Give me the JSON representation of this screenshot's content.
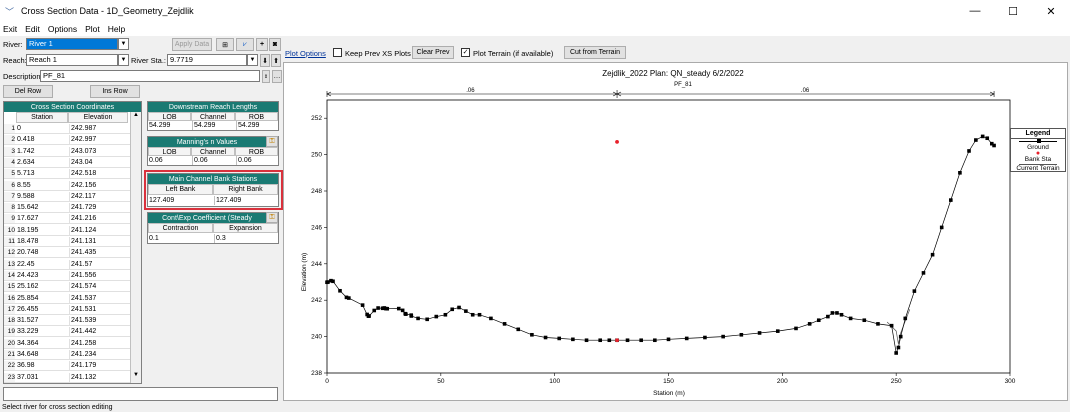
{
  "window": {
    "title": "Cross Section Data - 1D_Geometry_Zejdlik",
    "minimize": "—",
    "maximize": "☐",
    "close": "✕"
  },
  "menu": [
    "Exit",
    "Edit",
    "Options",
    "Plot",
    "Help"
  ],
  "river": {
    "label": "River:",
    "value": "River 1"
  },
  "reach": {
    "label": "Reach:",
    "value": "Reach 1"
  },
  "river_sta": {
    "label": "River Sta.:",
    "value": "9.7719"
  },
  "description": {
    "label": "Description",
    "value": "PF_81"
  },
  "apply_data": "Apply Data",
  "del_row": "Del Row",
  "ins_row": "Ins Row",
  "coords": {
    "title": "Cross Section Coordinates",
    "headers": [
      "Station",
      "Elevation"
    ],
    "rows": [
      [
        "1",
        "0",
        "242.987"
      ],
      [
        "2",
        "0.418",
        "242.997"
      ],
      [
        "3",
        "1.742",
        "243.073"
      ],
      [
        "4",
        "2.634",
        "243.04"
      ],
      [
        "5",
        "5.713",
        "242.518"
      ],
      [
        "6",
        "8.55",
        "242.156"
      ],
      [
        "7",
        "9.588",
        "242.117"
      ],
      [
        "8",
        "15.642",
        "241.729"
      ],
      [
        "9",
        "17.627",
        "241.216"
      ],
      [
        "10",
        "18.195",
        "241.124"
      ],
      [
        "11",
        "18.478",
        "241.131"
      ],
      [
        "12",
        "20.748",
        "241.435"
      ],
      [
        "13",
        "22.45",
        "241.57"
      ],
      [
        "14",
        "24.423",
        "241.556"
      ],
      [
        "15",
        "25.162",
        "241.574"
      ],
      [
        "16",
        "25.854",
        "241.537"
      ],
      [
        "17",
        "26.455",
        "241.531"
      ],
      [
        "18",
        "31.527",
        "241.539"
      ],
      [
        "19",
        "33.229",
        "241.442"
      ],
      [
        "20",
        "34.364",
        "241.258"
      ],
      [
        "21",
        "34.648",
        "241.234"
      ],
      [
        "22",
        "36.98",
        "241.179"
      ],
      [
        "23",
        "37.031",
        "241.132"
      ]
    ]
  },
  "reach_lengths": {
    "title": "Downstream Reach Lengths",
    "headers": [
      "LOB",
      "Channel",
      "ROB"
    ],
    "values": [
      "54.299",
      "54.299",
      "54.299"
    ]
  },
  "mannings": {
    "title": "Manning's n Values",
    "headers": [
      "LOB",
      "Channel",
      "ROB"
    ],
    "values": [
      "0.06",
      "0.06",
      "0.06"
    ]
  },
  "bank_stations": {
    "title": "Main Channel Bank Stations",
    "headers": [
      "Left Bank",
      "Right Bank"
    ],
    "values": [
      "127.409",
      "127.409"
    ]
  },
  "cont_exp": {
    "title": "Cont\\Exp Coefficient (Steady",
    "headers": [
      "Contraction",
      "Expansion"
    ],
    "values": [
      "0.1",
      "0.3"
    ]
  },
  "plot_toolbar": {
    "plot_options": "Plot Options",
    "keep_prev": "Keep Prev XS Plots",
    "clear_prev": "Clear Prev",
    "plot_terrain": "Plot Terrain (if available)",
    "cut_terrain": "Cut from Terrain"
  },
  "status": "Select river for cross section editing",
  "colors": {
    "teal": "#1a7a73",
    "highlight_red": "#d9313c",
    "bank_red": "#e8212b"
  },
  "chart_data": {
    "type": "line",
    "title": "Zejdlik_2022      Plan: QN_steady     6/2/2022",
    "subtitle": "PF_81",
    "xlabel": "Station (m)",
    "ylabel": "Elevation (m)",
    "xlim": [
      0,
      300
    ],
    "ylim": [
      238,
      253
    ],
    "xticks": [
      0,
      50,
      100,
      150,
      200,
      250,
      300
    ],
    "yticks": [
      238,
      240,
      242,
      244,
      246,
      248,
      250,
      252
    ],
    "n_labels": [
      {
        "x": 63,
        "label": ".06"
      },
      {
        "x": 210,
        "label": ".06"
      }
    ],
    "bank_station_x": 127.4,
    "bank_markers": [
      {
        "x": 127.4,
        "y": 250.7
      },
      {
        "x": 127.4,
        "y": 239.8
      }
    ],
    "series": [
      {
        "name": "Ground",
        "x": [
          0,
          0.418,
          1.742,
          2.634,
          5.713,
          8.55,
          9.588,
          15.642,
          17.627,
          18.195,
          18.478,
          20.748,
          22.45,
          24.423,
          25.162,
          25.854,
          26.455,
          31.527,
          33.229,
          34.364,
          34.648,
          36.98,
          37.031,
          40,
          44,
          48,
          52,
          55,
          58,
          61,
          64,
          67,
          72,
          78,
          84,
          90,
          96,
          102,
          108,
          114,
          120,
          124,
          127.4,
          132,
          138,
          144,
          150,
          158,
          166,
          174,
          182,
          190,
          198,
          206,
          212,
          216,
          220,
          222,
          224,
          226,
          230,
          236,
          242,
          248,
          250,
          251,
          252,
          254,
          258,
          262,
          266,
          270,
          274,
          278,
          282,
          285,
          288,
          290,
          292,
          293
        ],
        "y": [
          242.987,
          242.997,
          243.073,
          243.04,
          242.518,
          242.156,
          242.117,
          241.729,
          241.216,
          241.124,
          241.131,
          241.435,
          241.57,
          241.556,
          241.574,
          241.537,
          241.531,
          241.539,
          241.442,
          241.258,
          241.234,
          241.179,
          241.132,
          241.0,
          240.95,
          241.1,
          241.2,
          241.5,
          241.6,
          241.4,
          241.2,
          241.2,
          241.0,
          240.7,
          240.4,
          240.1,
          239.95,
          239.9,
          239.85,
          239.8,
          239.8,
          239.8,
          239.8,
          239.8,
          239.8,
          239.8,
          239.85,
          239.9,
          239.95,
          240.0,
          240.1,
          240.2,
          240.3,
          240.45,
          240.7,
          240.9,
          241.1,
          241.3,
          241.3,
          241.2,
          241.0,
          240.9,
          240.7,
          240.6,
          239.1,
          239.4,
          240.0,
          241.0,
          242.5,
          243.5,
          244.5,
          246.0,
          247.5,
          249.0,
          250.2,
          250.8,
          251.0,
          250.9,
          250.6,
          250.5
        ]
      },
      {
        "name": "Current Terrain",
        "x": [
          246,
          250,
          251,
          252,
          256
        ],
        "y": [
          240.8,
          240.3,
          239.6,
          240.2,
          241.5
        ]
      }
    ]
  },
  "legend": {
    "title": "Legend",
    "items": [
      "Ground",
      "Bank Sta",
      "Current Terrain"
    ]
  }
}
